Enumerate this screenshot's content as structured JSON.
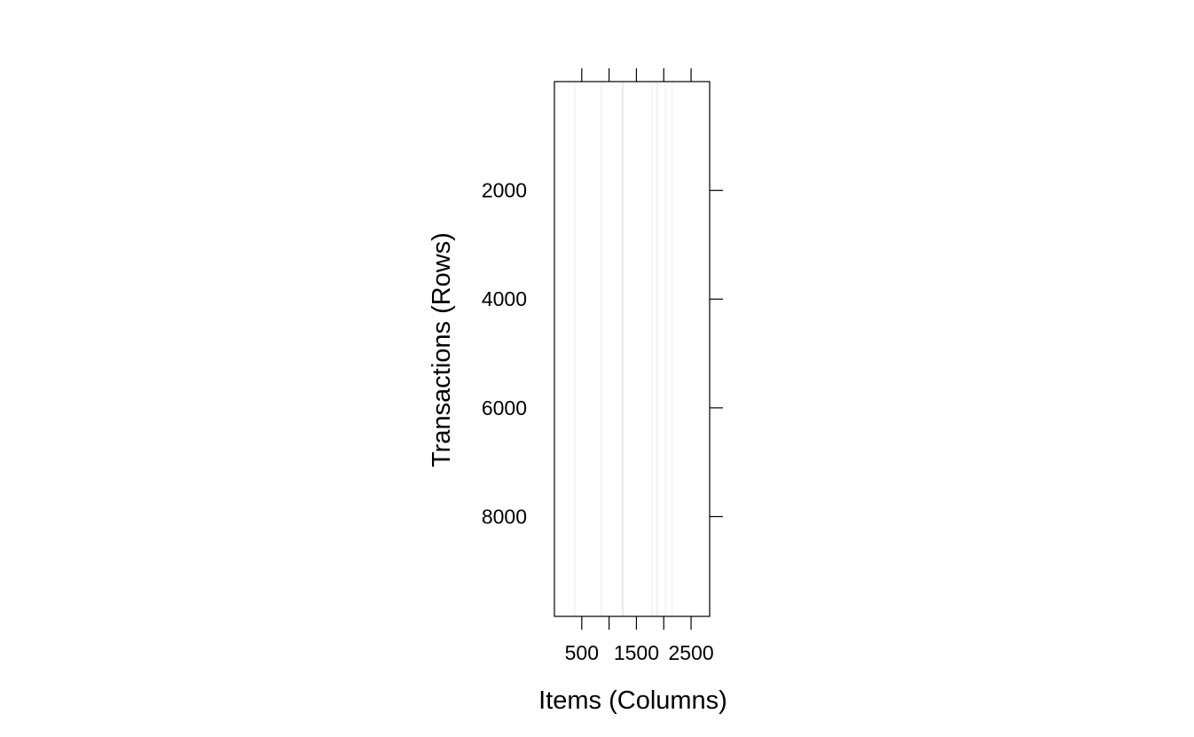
{
  "chart_data": {
    "type": "heatmap",
    "title": "",
    "xlabel": "Items (Columns)",
    "ylabel": "Transactions (Rows)",
    "x_ticks": [
      500,
      1000,
      1500,
      2000,
      2500
    ],
    "x_tick_labels": [
      "500",
      "1500",
      "2500"
    ],
    "x_tick_labels_at": [
      500,
      1500,
      2500
    ],
    "y_ticks": [
      2000,
      4000,
      6000,
      8000
    ],
    "y_tick_labels": [
      "2000",
      "4000",
      "6000",
      "8000"
    ],
    "xlim": [
      0,
      2840
    ],
    "ylim": [
      0,
      9835
    ],
    "y_reversed": true,
    "grid": false,
    "column_density": [
      {
        "x": 370,
        "shade": 0.06
      },
      {
        "x": 860,
        "shade": 0.05
      },
      {
        "x": 1250,
        "shade": 0.1
      },
      {
        "x": 1780,
        "shade": 0.05
      },
      {
        "x": 1880,
        "shade": 0.07
      },
      {
        "x": 2030,
        "shade": 0.05
      },
      {
        "x": 2150,
        "shade": 0.05
      }
    ]
  },
  "colors": {
    "axis": "#000000",
    "background": "#ffffff",
    "cell": "#000000"
  }
}
